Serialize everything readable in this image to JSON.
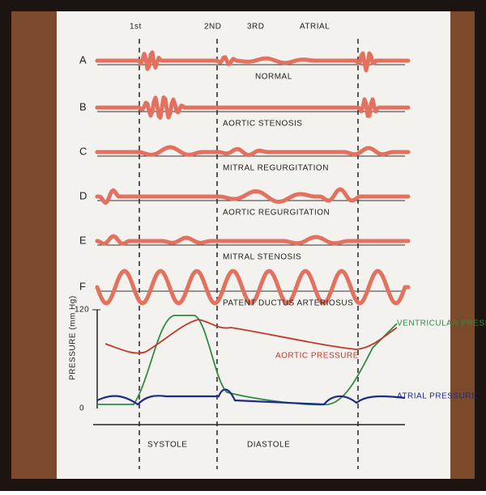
{
  "header": {
    "sounds": [
      "1st",
      "2ND",
      "3RD",
      "ATRIAL"
    ]
  },
  "rows": [
    {
      "letter": "A",
      "label": "NORMAL"
    },
    {
      "letter": "B",
      "label": "AORTIC STENOSIS"
    },
    {
      "letter": "C",
      "label": "MITRAL REGURGITATION"
    },
    {
      "letter": "D",
      "label": "AORTIC REGURGITATION"
    },
    {
      "letter": "E",
      "label": "MITRAL STENOSIS"
    },
    {
      "letter": "F",
      "label": "PATENT DUCTUS ARTERIOSUS"
    }
  ],
  "pressure": {
    "axis_label": "PRESSURE (mm Hg)",
    "ticks": [
      120,
      0
    ],
    "curves": [
      "VENTRICULAR PRESSURE",
      "AORTIC PRESSURE",
      "ATRIAL PRESSURE"
    ]
  },
  "phases": [
    "SYSTOLE",
    "DIASTOLE"
  ]
}
